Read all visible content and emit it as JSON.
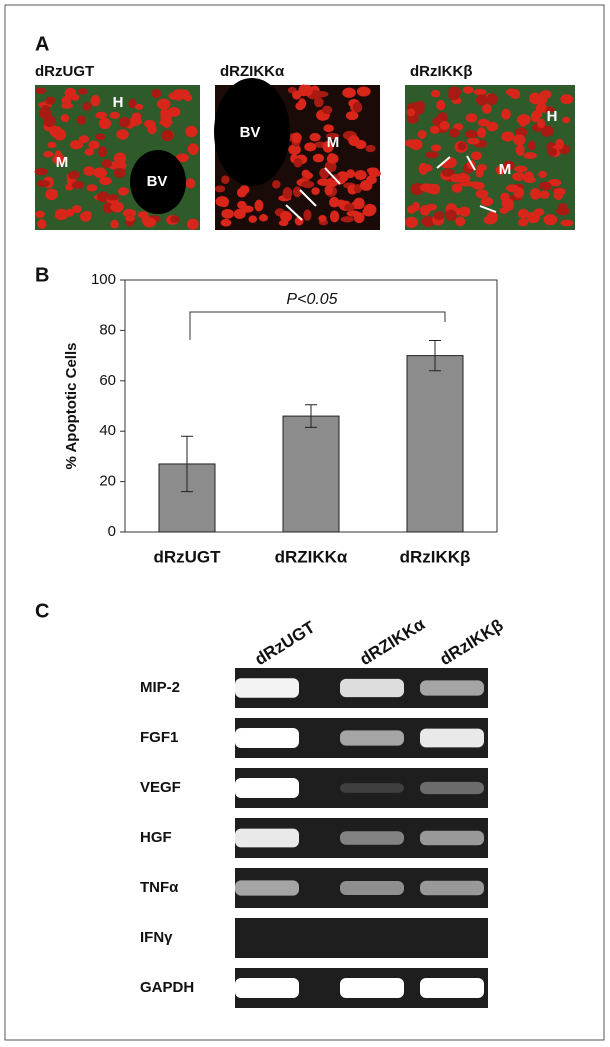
{
  "panel_a": {
    "label": "A",
    "images": [
      {
        "title": "dRzUGT",
        "labels": [
          "H",
          "M",
          "BV"
        ]
      },
      {
        "title": "dRZIKKα",
        "labels": [
          "BV",
          "M"
        ]
      },
      {
        "title": "dRzIKKβ",
        "labels": [
          "H",
          "M"
        ]
      }
    ]
  },
  "chart_data": {
    "type": "bar",
    "label": "B",
    "ylabel": "% Apoptotic Cells",
    "categories": [
      "dRzUGT",
      "dRZIKKα",
      "dRzIKKβ"
    ],
    "values": [
      27,
      46,
      70
    ],
    "errors": [
      11,
      4.5,
      6
    ],
    "color": "#8c8c8c",
    "ylim": [
      0,
      100
    ],
    "yticks": [
      0,
      20,
      40,
      60,
      80,
      100
    ],
    "annotation": "P<0.05"
  },
  "panel_c": {
    "label": "C",
    "columns": [
      "dRzUGT",
      "dRZIKKα",
      "dRzIKKβ"
    ],
    "rows": [
      "MIP-2",
      "FGF1",
      "VEGF",
      "HGF",
      "TNFα",
      "IFNγ",
      "GAPDH"
    ]
  }
}
